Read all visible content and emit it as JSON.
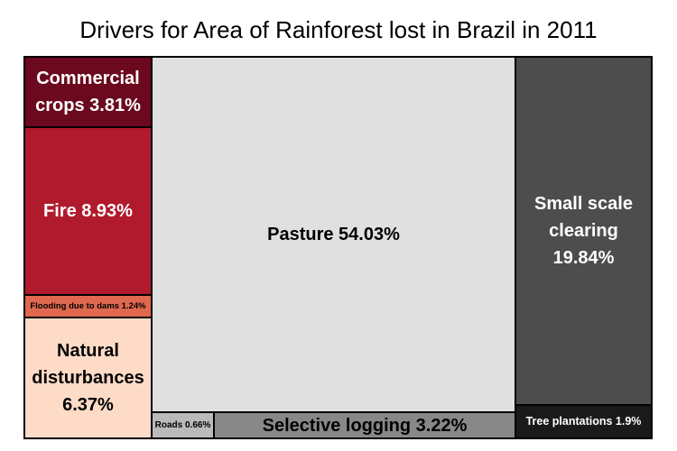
{
  "chart_data": {
    "type": "treemap",
    "title": "Drivers for Area of Rainforest lost in Brazil in 2011",
    "cells": [
      {
        "name": "Commercial crops",
        "value": 3.81,
        "label": "Commercial crops 3.81%",
        "color": "#6b0a1e",
        "text_color": "#ffffff"
      },
      {
        "name": "Fire",
        "value": 8.93,
        "label": "Fire 8.93%",
        "color": "#b01a2c",
        "text_color": "#ffffff"
      },
      {
        "name": "Flooding due to dams",
        "value": 1.24,
        "label": "Flooding due to dams 1.24%",
        "color": "#e0684f",
        "text_color": "#000000"
      },
      {
        "name": "Natural disturbances",
        "value": 6.37,
        "label": "Natural disturbances 6.37%",
        "color": "#fddbc7",
        "text_color": "#000000"
      },
      {
        "name": "Pasture",
        "value": 54.03,
        "label": "Pasture 54.03%",
        "color": "#e0e0e0",
        "text_color": "#000000"
      },
      {
        "name": "Roads",
        "value": 0.66,
        "label": "Roads 0.66%",
        "color": "#bababa",
        "text_color": "#000000"
      },
      {
        "name": "Selective logging",
        "value": 3.22,
        "label": "Selective logging 3.22%",
        "color": "#888888",
        "text_color": "#000000"
      },
      {
        "name": "Small scale clearing",
        "value": 19.84,
        "label": "Small scale clearing 19.84%",
        "color": "#4d4d4d",
        "text_color": "#ffffff"
      },
      {
        "name": "Tree plantations",
        "value": 1.9,
        "label": "Tree plantations 1.9%",
        "color": "#1a1a1a",
        "text_color": "#ffffff"
      }
    ]
  }
}
